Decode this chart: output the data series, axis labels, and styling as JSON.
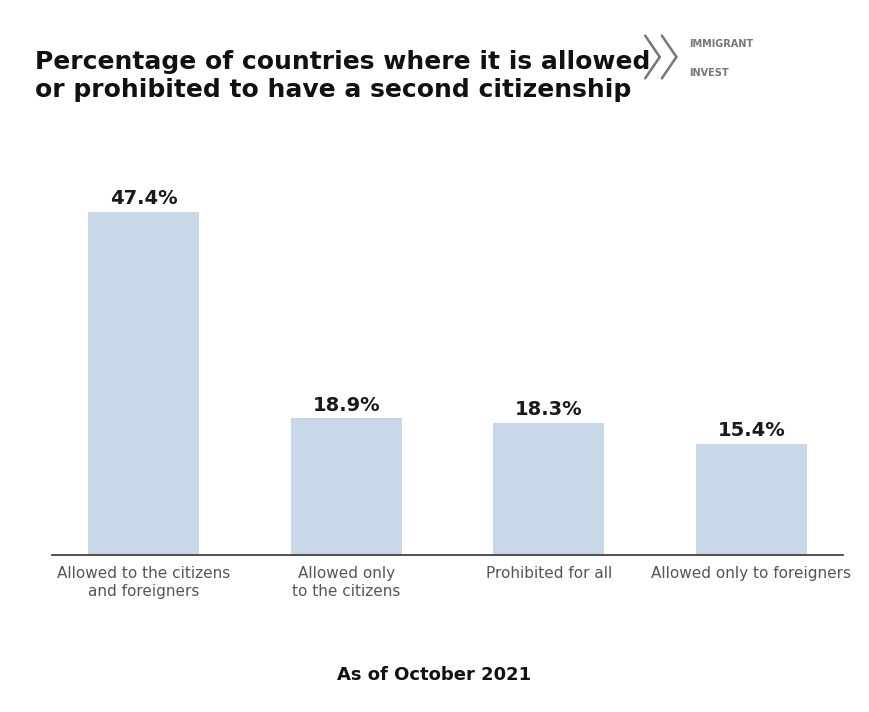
{
  "title_line1": "Percentage of countries where it is allowed",
  "title_line2": "or prohibited to have a second citizenship",
  "categories": [
    "Allowed to the citizens\nand foreigners",
    "Allowed only\nto the citizens",
    "Prohibited for all",
    "Allowed only to foreigners"
  ],
  "values": [
    47.4,
    18.9,
    18.3,
    15.4
  ],
  "value_labels": [
    "47.4%",
    "18.9%",
    "18.3%",
    "15.4%"
  ],
  "bar_color": "#c8d8e8",
  "background_color": "#ffffff",
  "title_fontsize": 18,
  "label_fontsize": 11,
  "value_fontsize": 14,
  "footer_text": "As of October 2021",
  "footer_fontsize": 13,
  "ylim": [
    0,
    55
  ],
  "bar_width": 0.55,
  "logo_text1": "IMMIGRANT",
  "logo_text2": "INVEST",
  "logo_color": "#777777"
}
